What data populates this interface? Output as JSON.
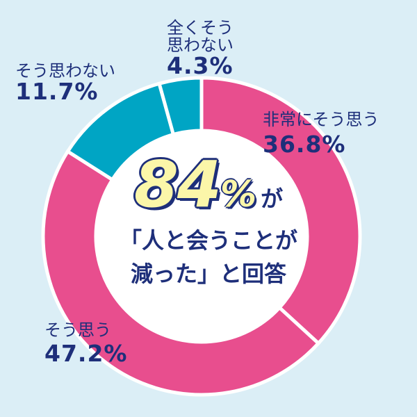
{
  "chart_data": {
    "type": "pie",
    "style": "donut",
    "slices": [
      {
        "label": "非常にそう思う",
        "value": 36.8,
        "display": "36.8%",
        "color": "#e84e8e"
      },
      {
        "label": "そう思う",
        "value": 47.2,
        "display": "47.2%",
        "color": "#e84e8e"
      },
      {
        "label": "そう思わない",
        "value": 11.7,
        "display": "11.7%",
        "color": "#00a5c4"
      },
      {
        "label": "全くそう思わない",
        "value": 4.3,
        "display": "4.3%",
        "color": "#00a5c4"
      }
    ],
    "center": {
      "number": "84",
      "unit": "%",
      "particle": "が",
      "line1": "「人と会うことが",
      "line2": "減った」と回答"
    },
    "colors": {
      "background": "#dbeef6",
      "pink": "#e84e8e",
      "teal": "#00a5c4",
      "text": "#1e2f7a",
      "highlight": "#fbf6a9"
    }
  },
  "labels": {
    "zenku_line1": "全くそう",
    "zenku_line2": "思わない",
    "zenku_pct": "4.3%",
    "hijou_name": "非常にそう思う",
    "hijou_pct": "36.8%",
    "omowanai_name": "そう思わない",
    "omowanai_pct": "11.7%",
    "sou_name": "そう思う",
    "sou_pct": "47.2%"
  }
}
